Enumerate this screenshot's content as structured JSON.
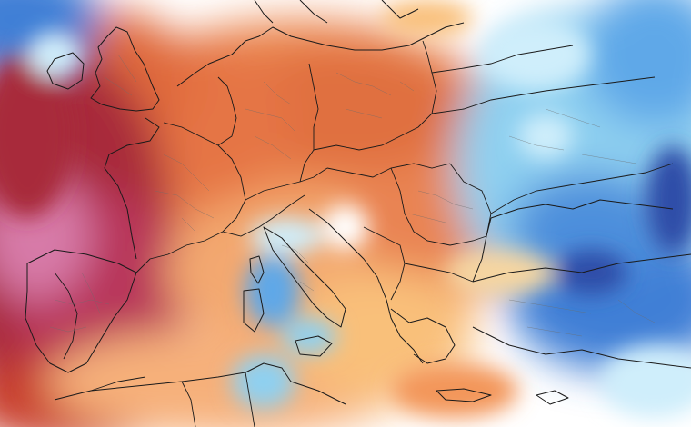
{
  "map": {
    "type": "temperature anomaly map",
    "region": "Europe",
    "labels": [],
    "colors": {
      "background": "#ffffff",
      "coast": "#1a1a1a",
      "border": "#1a1a1a",
      "admin_border": "#6b6b6b",
      "anomaly_scale": [
        "#2f4ea8",
        "#3f7fd6",
        "#5ea8e8",
        "#8fd0f0",
        "#cfeefb",
        "#ffffff",
        "#fde6b8",
        "#f9c07a",
        "#f3965a",
        "#e06a3e",
        "#c9402e",
        "#a82a3a",
        "#c3467a",
        "#e58ab8"
      ]
    }
  }
}
